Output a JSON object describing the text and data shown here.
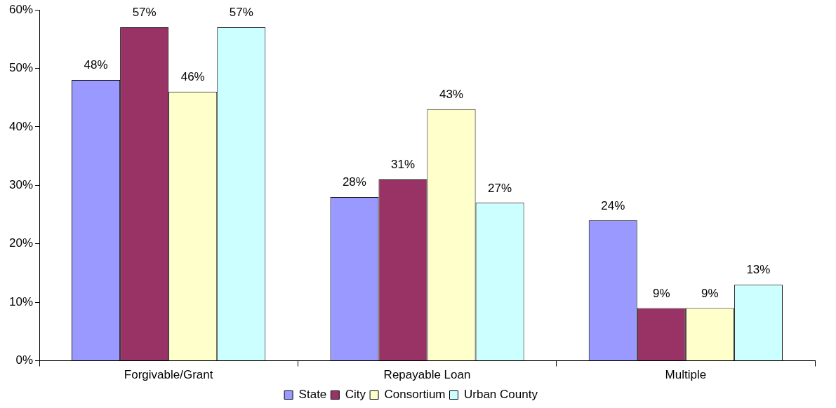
{
  "chart_data": {
    "type": "bar",
    "categories": [
      "Forgivable/Grant",
      "Repayable Loan",
      "Multiple"
    ],
    "series": [
      {
        "name": "State",
        "color": "#9999ff",
        "values": [
          48,
          28,
          24
        ],
        "value_labels": [
          "48%",
          "28%",
          "24%"
        ]
      },
      {
        "name": "City",
        "color": "#993366",
        "values": [
          57,
          31,
          9
        ],
        "value_labels": [
          "57%",
          "31%",
          "9%"
        ]
      },
      {
        "name": "Consortium",
        "color": "#ffffcc",
        "values": [
          46,
          43,
          9
        ],
        "value_labels": [
          "46%",
          "43%",
          "9%"
        ]
      },
      {
        "name": "Urban County",
        "color": "#ccffff",
        "values": [
          57,
          27,
          13
        ],
        "value_labels": [
          "57%",
          "27%",
          "13%"
        ]
      }
    ],
    "ylim": [
      0,
      60
    ],
    "yticks": [
      {
        "value": 0,
        "label": "0%"
      },
      {
        "value": 10,
        "label": "10%"
      },
      {
        "value": 20,
        "label": "20%"
      },
      {
        "value": 30,
        "label": "30%"
      },
      {
        "value": 40,
        "label": "40%"
      },
      {
        "value": 50,
        "label": "50%"
      },
      {
        "value": 60,
        "label": "60%"
      }
    ],
    "grid": false,
    "legend": "bottom"
  }
}
